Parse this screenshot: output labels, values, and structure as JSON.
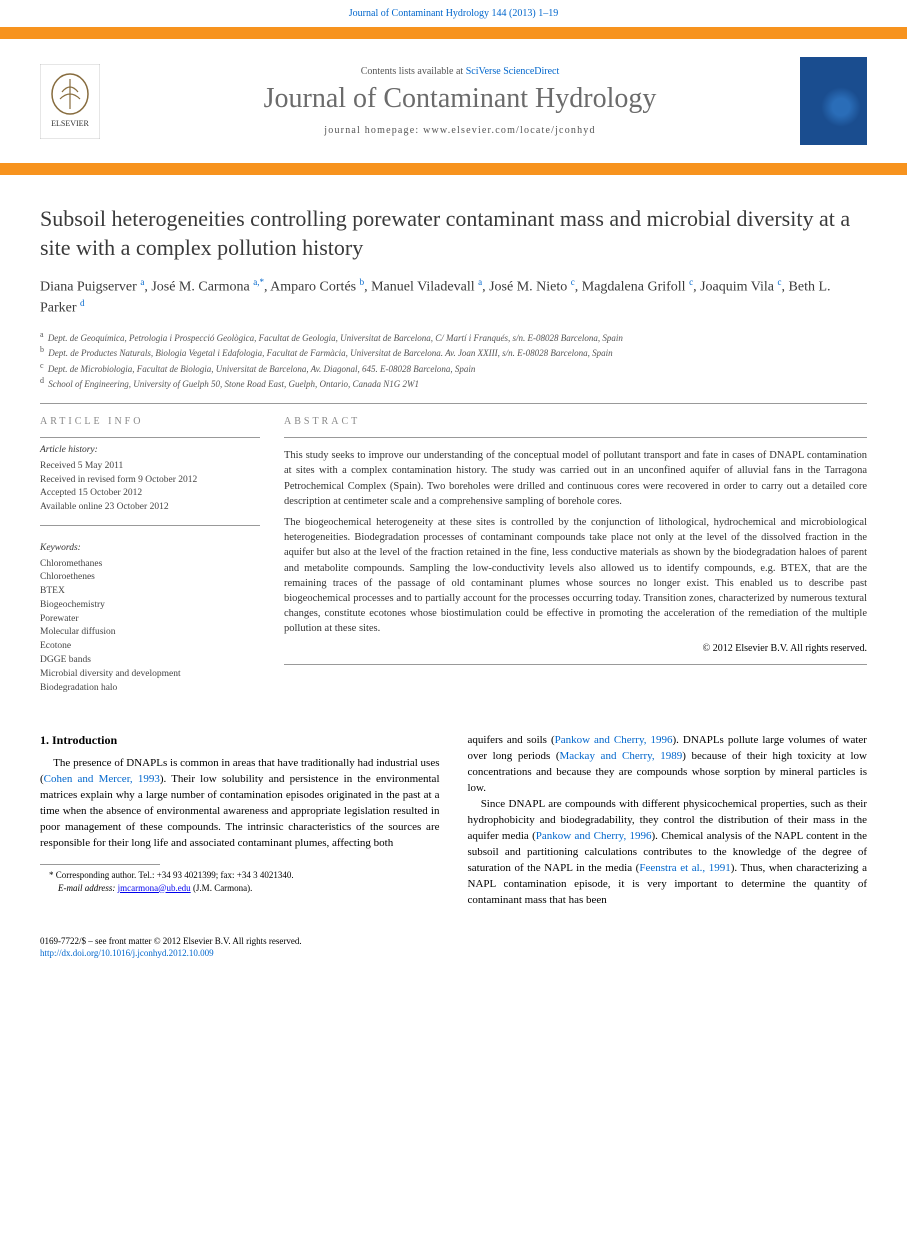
{
  "header": {
    "citation": "Journal of Contaminant Hydrology 144 (2013) 1–19"
  },
  "banner": {
    "availability_prefix": "Contents lists available at ",
    "availability_link": "SciVerse ScienceDirect",
    "journal_name": "Journal of Contaminant Hydrology",
    "homepage_label": "journal homepage: www.elsevier.com/locate/jconhyd",
    "publisher_logo_alt": "Elsevier tree logo",
    "cover_alt": "Journal of Contaminant Hydrology cover",
    "colors": {
      "accent": "#f7931e",
      "link": "#0066cc",
      "title_gray": "#6b6b6b",
      "cover_bg": "#1a4d8f"
    }
  },
  "article": {
    "title": "Subsoil heterogeneities controlling porewater contaminant mass and microbial diversity at a site with a complex pollution history",
    "authors_html": "Diana Puigserver <sup>a</sup>, José M. Carmona <sup>a,*</sup>, Amparo Cortés <sup>b</sup>, Manuel Viladevall <sup>a</sup>, José M. Nieto <sup>c</sup>, Magdalena Grifoll <sup>c</sup>, Joaquim Vila <sup>c</sup>, Beth L. Parker <sup>d</sup>",
    "affiliations": [
      {
        "sup": "a",
        "text": "Dept. de Geoquímica, Petrologia i Prospecció Geològica, Facultat de Geologia, Universitat de Barcelona, C/ Martí i Franqués, s/n. E-08028 Barcelona, Spain"
      },
      {
        "sup": "b",
        "text": "Dept. de Productes Naturals, Biologia Vegetal i Edafologia, Facultat de Farmàcia, Universitat de Barcelona. Av. Joan XXIII, s/n. E-08028 Barcelona, Spain"
      },
      {
        "sup": "c",
        "text": "Dept. de Microbiologia, Facultat de Biologia, Universitat de Barcelona, Av. Diagonal, 645. E-08028 Barcelona, Spain"
      },
      {
        "sup": "d",
        "text": "School of Engineering, University of Guelph 50, Stone Road East, Guelph, Ontario, Canada N1G 2W1"
      }
    ]
  },
  "info": {
    "heading": "ARTICLE INFO",
    "history_label": "Article history:",
    "history": [
      "Received 5 May 2011",
      "Received in revised form 9 October 2012",
      "Accepted 15 October 2012",
      "Available online 23 October 2012"
    ],
    "keywords_label": "Keywords:",
    "keywords": [
      "Chloromethanes",
      "Chloroethenes",
      "BTEX",
      "Biogeochemistry",
      "Porewater",
      "Molecular diffusion",
      "Ecotone",
      "DGGE bands",
      "Microbial diversity and development",
      "Biodegradation halo"
    ]
  },
  "abstract": {
    "heading": "ABSTRACT",
    "paragraphs": [
      "This study seeks to improve our understanding of the conceptual model of pollutant transport and fate in cases of DNAPL contamination at sites with a complex contamination history. The study was carried out in an unconfined aquifer of alluvial fans in the Tarragona Petrochemical Complex (Spain). Two boreholes were drilled and continuous cores were recovered in order to carry out a detailed core description at centimeter scale and a comprehensive sampling of borehole cores.",
      "The biogeochemical heterogeneity at these sites is controlled by the conjunction of lithological, hydrochemical and microbiological heterogeneities. Biodegradation processes of contaminant compounds take place not only at the level of the dissolved fraction in the aquifer but also at the level of the fraction retained in the fine, less conductive materials as shown by the biodegradation haloes of parent and metabolite compounds. Sampling the low-conductivity levels also allowed us to identify compounds, e.g. BTEX, that are the remaining traces of the passage of old contaminant plumes whose sources no longer exist. This enabled us to describe past biogeochemical processes and to partially account for the processes occurring today. Transition zones, characterized by numerous textural changes, constitute ecotones whose biostimulation could be effective in promoting the acceleration of the remediation of the multiple pollution at these sites."
    ],
    "copyright": "© 2012 Elsevier B.V. All rights reserved."
  },
  "body": {
    "section_number": "1.",
    "section_title": "Introduction",
    "col1_p1": "The presence of DNAPLs is common in areas that have traditionally had industrial uses (Cohen and Mercer, 1993). Their low solubility and persistence in the environmental matrices explain why a large number of contamination episodes originated in the past at a time when the absence of environmental awareness and appropriate legislation resulted in poor management of these compounds. The intrinsic characteristics of the sources are responsible for their long life and associated contaminant plumes, affecting both",
    "col2_p1": "aquifers and soils (Pankow and Cherry, 1996). DNAPLs pollute large volumes of water over long periods (Mackay and Cherry, 1989) because of their high toxicity at low concentrations and because they are compounds whose sorption by mineral particles is low.",
    "col2_p2": "Since DNAPL are compounds with different physicochemical properties, such as their hydrophobicity and biodegradability, they control the distribution of their mass in the aquifer media (Pankow and Cherry, 1996). Chemical analysis of the NAPL content in the subsoil and partitioning calculations contributes to the knowledge of the degree of saturation of the NAPL in the media (Feenstra et al., 1991). Thus, when characterizing a NAPL contamination episode, it is very important to determine the quantity of contaminant mass that has been",
    "refs": {
      "cohen": "Cohen and Mercer, 1993",
      "pankow": "Pankow and Cherry, 1996",
      "mackay": "Mackay and Cherry, 1989",
      "feenstra": "Feenstra et al., 1991"
    }
  },
  "footnote": {
    "corresponding": "* Corresponding author. Tel.: +34 93 4021399; fax: +34 3 4021340.",
    "email_label": "E-mail address: ",
    "email": "jmcarmona@ub.edu",
    "email_suffix": " (J.M. Carmona)."
  },
  "footer": {
    "issn": "0169-7722/$ – see front matter © 2012 Elsevier B.V. All rights reserved.",
    "doi": "http://dx.doi.org/10.1016/j.jconhyd.2012.10.009"
  }
}
